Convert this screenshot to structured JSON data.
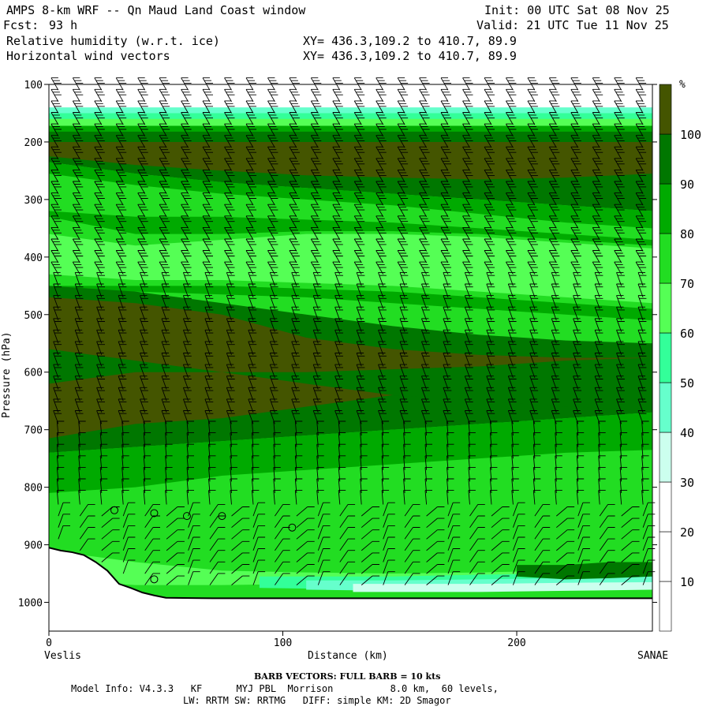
{
  "header": {
    "title": "AMPS 8-km WRF -- Qn Maud Land Coast window",
    "init": "Init: 00 UTC Sat 08 Nov 25",
    "fcst_label": "Fcst:",
    "fcst_value": "93 h",
    "valid": "Valid: 21 UTC Tue 11 Nov 25",
    "field1": "Relative humidity (w.r.t. ice)",
    "field2": "Horizontal wind vectors",
    "xy1": "XY= 436.3,109.2 to 410.7, 89.9",
    "xy2": "XY= 436.3,109.2 to 410.7, 89.9"
  },
  "chart_data": {
    "type": "heatmap",
    "title": "Relative humidity (w.r.t. ice) and horizontal wind vectors cross-section",
    "xlabel": "Distance (km)",
    "ylabel": "Pressure (hPa)",
    "xlim": [
      0,
      258
    ],
    "ylim": [
      1050,
      100
    ],
    "x_ticks": [
      0,
      100,
      200
    ],
    "y_ticks": [
      100,
      200,
      300,
      400,
      500,
      600,
      700,
      800,
      900,
      1000
    ],
    "left_endpoint": "Veslis",
    "right_endpoint": "SANAE",
    "colorbar": {
      "unit": "%",
      "levels": [
        10,
        20,
        30,
        40,
        50,
        60,
        70,
        80,
        90,
        100
      ],
      "colors": [
        "#ffffff",
        "#ffffff",
        "#ffffff",
        "#ccffee",
        "#66ffcc",
        "#33ff99",
        "#55ff55",
        "#22dd22",
        "#00aa00",
        "#007700",
        "#445500"
      ]
    },
    "terrain_pressure": [
      [
        0,
        905
      ],
      [
        5,
        910
      ],
      [
        10,
        913
      ],
      [
        15,
        918
      ],
      [
        20,
        930
      ],
      [
        25,
        945
      ],
      [
        30,
        968
      ],
      [
        35,
        975
      ],
      [
        40,
        983
      ],
      [
        45,
        988
      ],
      [
        50,
        992
      ],
      [
        70,
        993
      ],
      [
        90,
        993
      ],
      [
        258,
        993
      ]
    ],
    "rh_contour_bands": [
      {
        "value": 100,
        "p_top": [
          200,
          200,
          200,
          200,
          200,
          200,
          200,
          200
        ],
        "p_bot": [
          230,
          250,
          265,
          270,
          270,
          265,
          260,
          255
        ]
      },
      {
        "value": 100,
        "p_top": [
          470,
          470,
          480,
          500,
          540,
          560,
          570,
          580
        ],
        "p_bot": [
          720,
          700,
          680,
          650,
          620,
          610,
          600,
          590
        ]
      },
      {
        "value": 60,
        "p_top": [
          330,
          330,
          340,
          350,
          360,
          370,
          380,
          390
        ],
        "p_bot": [
          430,
          440,
          450,
          455,
          460,
          470,
          480,
          490
        ]
      }
    ],
    "wind_barb_rows_hPa": [
      110,
      130,
      150,
      170,
      190,
      210,
      230,
      250,
      270,
      290,
      310,
      330,
      350,
      370,
      390,
      410,
      430,
      450,
      470,
      490,
      510,
      530,
      550,
      570,
      590,
      610,
      630,
      650,
      670,
      690,
      710,
      730,
      750,
      770,
      790,
      810,
      830,
      850,
      870,
      890,
      910,
      930,
      950,
      970
    ],
    "calm_points": [
      {
        "x": 28,
        "p": 840
      },
      {
        "x": 45,
        "p": 845
      },
      {
        "x": 59,
        "p": 850
      },
      {
        "x": 74,
        "p": 850
      },
      {
        "x": 104,
        "p": 870
      },
      {
        "x": 45,
        "p": 960
      }
    ]
  },
  "footer": {
    "barb_note": "BARB VECTORS: FULL BARB = 10 kts",
    "model_info": "Model Info: V4.3.3   KF      MYJ PBL  Morrison          8.0 km,  60 levels,",
    "physics": "LW: RRTM SW: RRTMG   DIFF: simple KM: 2D Smagor"
  }
}
